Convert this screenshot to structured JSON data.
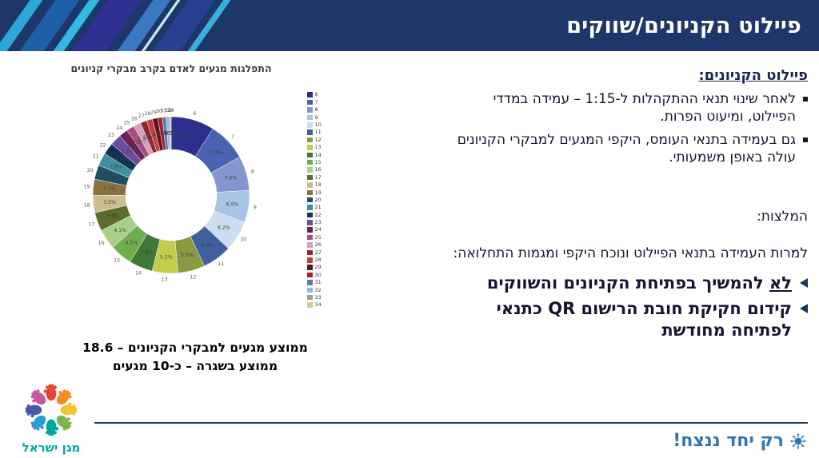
{
  "header": {
    "title": "פיילוט הקניונים/שווקים"
  },
  "chart_data": {
    "type": "pie",
    "donut": true,
    "title": "התפלגות מגעים לאדם בקרב מבקרי קניונים",
    "legend_position": "right",
    "value_format": "percent",
    "categories": [
      "6",
      "7",
      "8",
      "9",
      "10",
      "11",
      "12",
      "13",
      "14",
      "15",
      "16",
      "17",
      "18",
      "19",
      "20",
      "21",
      "22",
      "23",
      "24",
      "25",
      "26",
      "27",
      "28",
      "29",
      "30",
      "31",
      "32",
      "33",
      "34"
    ],
    "values": [
      8.8,
      7.9,
      7.0,
      6.5,
      6.2,
      6.0,
      5.5,
      5.2,
      4.8,
      4.5,
      4.1,
      3.8,
      3.5,
      3.3,
      2.9,
      2.6,
      2.4,
      2.3,
      1.8,
      1.6,
      1.5,
      1.3,
      1.2,
      1.1,
      0.9,
      0.8,
      0.6,
      0.3,
      0.1
    ],
    "colors": [
      "#2d2f8e",
      "#4a63b0",
      "#8496cf",
      "#a6c3e8",
      "#cdddf2",
      "#3f5f9f",
      "#8a9a43",
      "#c3cc4e",
      "#3e7a35",
      "#6fae4e",
      "#a8cf8a",
      "#5d6b2f",
      "#cbbd8f",
      "#8c7140",
      "#1f4e63",
      "#3f8e9e",
      "#123157",
      "#6a4fa0",
      "#6d2154",
      "#a84d7f",
      "#d39ec0",
      "#8c2a2a",
      "#c44040",
      "#5e1520",
      "#a31f34",
      "#5b7ea8",
      "#8fb8dd",
      "#9a9a9a",
      "#d9c79a"
    ]
  },
  "summary": {
    "line1": "ממוצע מגעים למבקרי הקניונים – 18.6",
    "line2": "ממוצע בשגרה – כ-10 מגעים"
  },
  "right_panel": {
    "heading": "פיילוט הקניונים:",
    "bullets": [
      "לאחר שינוי תנאי ההתקהלות ל-1:15 – עמידה במדדי הפיילוט, ומיעוט הפרות.",
      "גם בעמידה בתנאי העומס, היקפי המגעים למבקרי הקניונים עולה באופן משמעותי."
    ],
    "recommendations_label": "המלצות:",
    "intro": "למרות העמידה בתנאי הפיילוט ונוכח היקפי ומגמות התחלואה:",
    "actions": [
      {
        "lead": "לא",
        "rest": " להמשיך בפתיחת הקניונים והשווקים"
      },
      {
        "lead": "",
        "rest": "קידום חקיקת חובת הרישום QR כתנאי לפתיחה מחודשת"
      }
    ]
  },
  "footer": {
    "slogan": "רק יחד ננצח!",
    "logo_text": "מגן ישראל"
  },
  "colors": {
    "header_bg": "#1d3768",
    "divider": "#17375e",
    "slogan_blue": "#2e75b6",
    "logo_teal": "#00a79d"
  }
}
